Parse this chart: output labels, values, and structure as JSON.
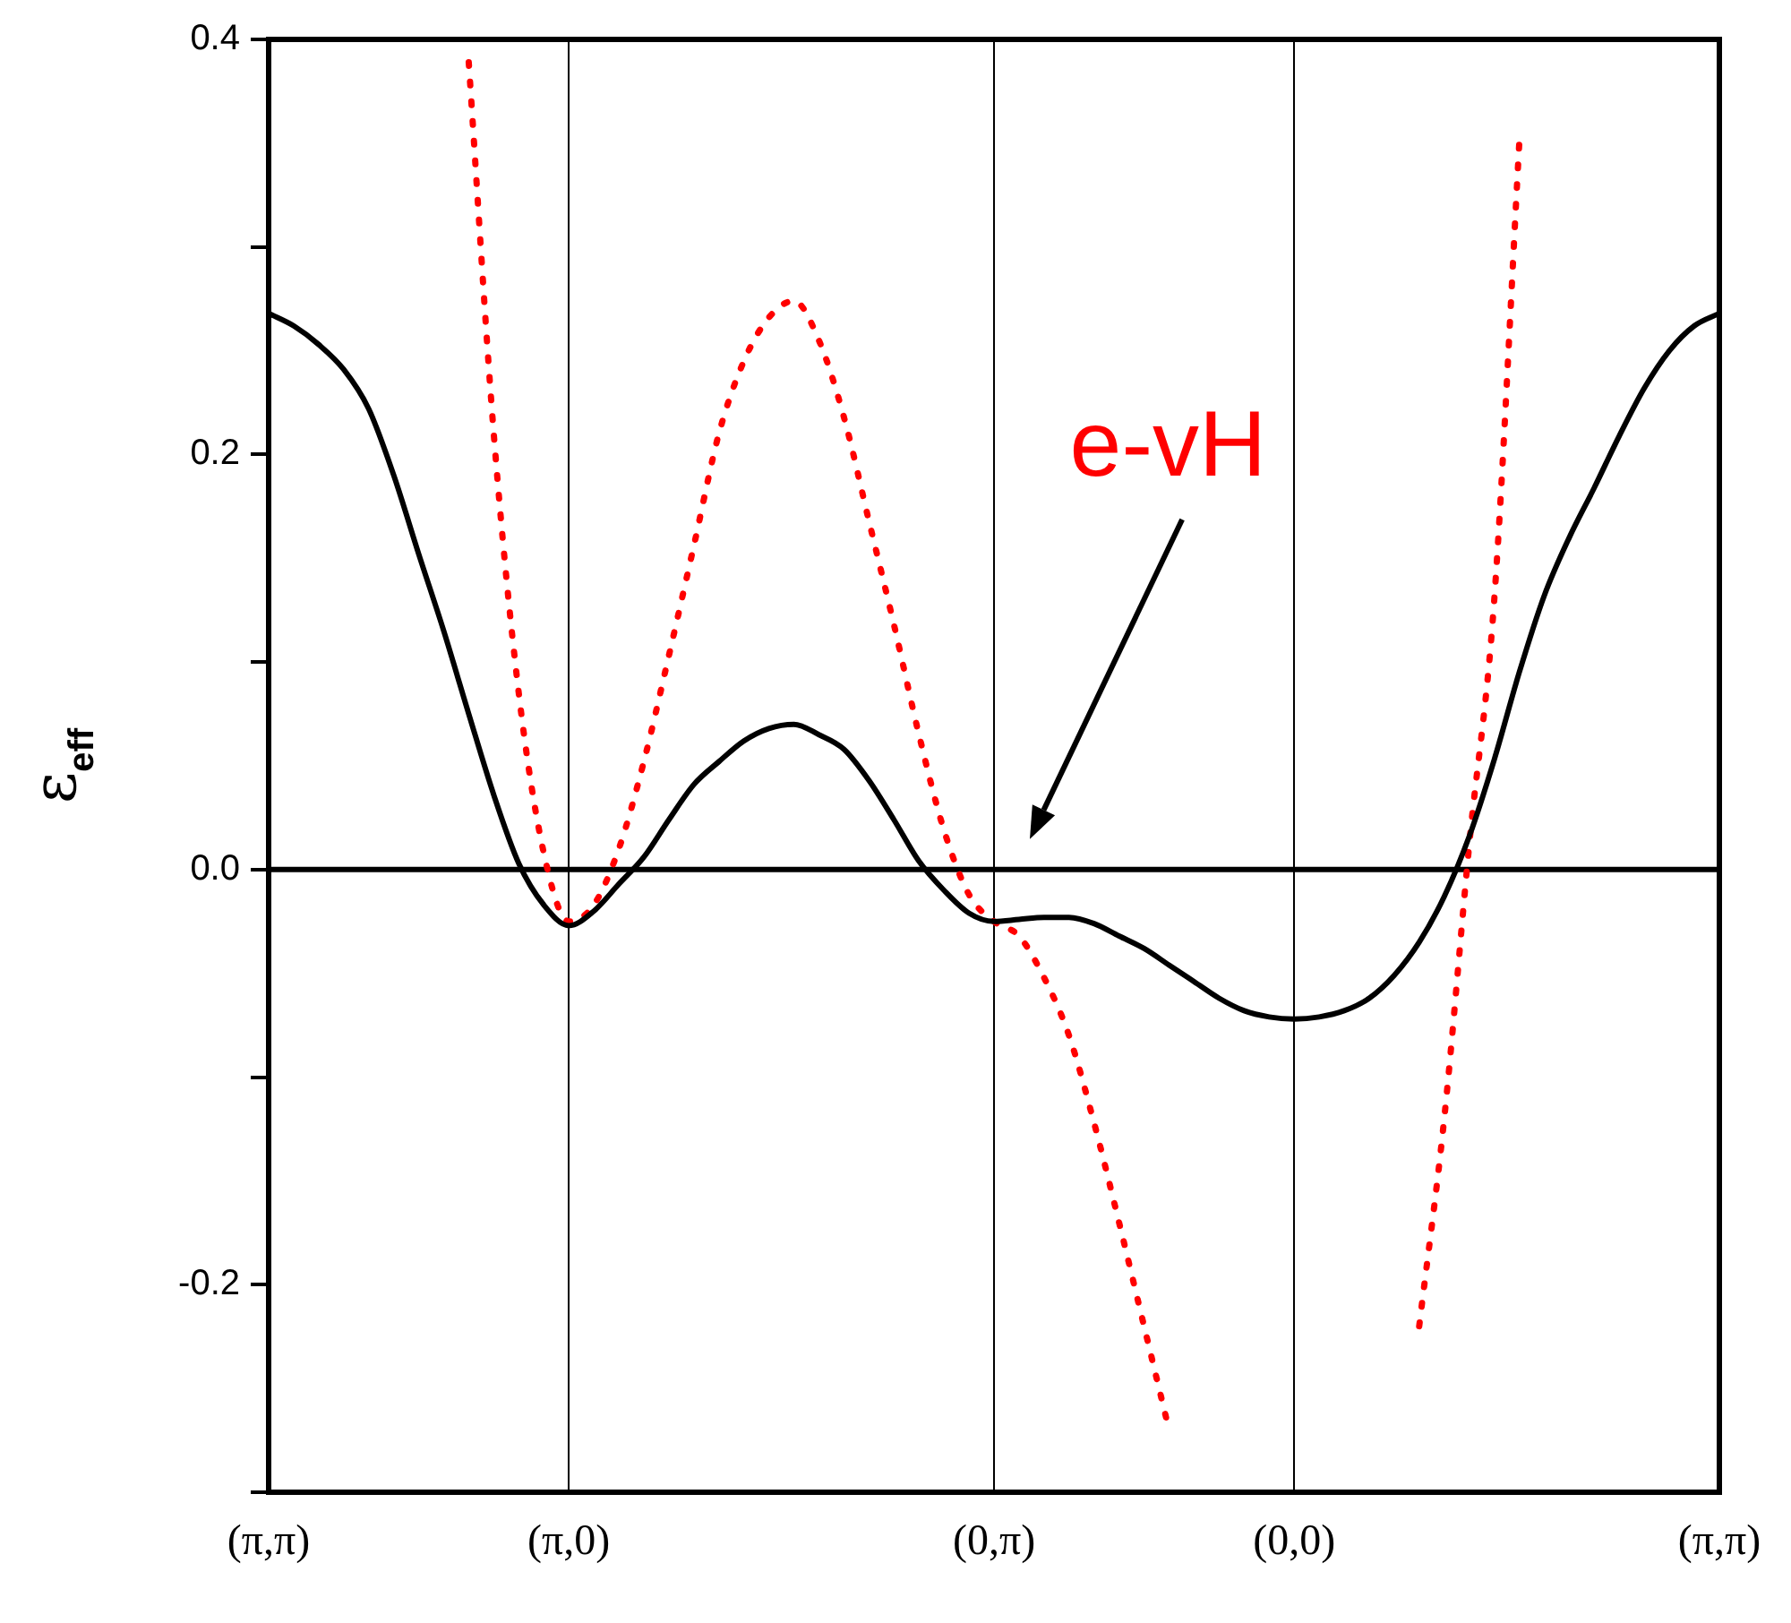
{
  "chart_data": {
    "type": "line",
    "ylabel": "ε$_{eff}$",
    "categories": [
      "(π,π)",
      null,
      null,
      null,
      null,
      null,
      null,
      null,
      null,
      null,
      null,
      null,
      "(π,0)",
      null,
      null,
      null,
      null,
      null,
      null,
      null,
      null,
      null,
      null,
      null,
      null,
      null,
      null,
      null,
      null,
      "(0,π)",
      null,
      null,
      null,
      null,
      null,
      null,
      null,
      null,
      null,
      null,
      null,
      "(0,0)",
      null,
      null,
      null,
      null,
      null,
      null,
      null,
      null,
      null,
      null,
      null,
      null,
      null,
      null,
      null,
      null,
      "(π,π)"
    ],
    "ylim": [
      -0.3,
      0.4
    ],
    "yticks": [
      {
        "value": -0.3,
        "label": null
      },
      {
        "value": -0.2,
        "label": "-0.2"
      },
      {
        "value": -0.1,
        "label": null
      },
      {
        "value": 0,
        "label": "0.0"
      },
      {
        "value": 0.1,
        "label": null
      },
      {
        "value": 0.2,
        "label": "0.2"
      },
      {
        "value": 0.3,
        "label": null
      },
      {
        "value": 0.4,
        "label": "0.4"
      }
    ],
    "grid": "x",
    "legend": false,
    "marker": "none",
    "ref_lines": [
      {
        "axis": "y",
        "value": 0,
        "color": "#000000"
      }
    ],
    "annotations": [
      "e-vH"
    ],
    "series": [
      {
        "color": "#000000",
        "line_style": "solid",
        "values": [
          0.268,
          0.262,
          0.253,
          0.241,
          0.222,
          0.19,
          0.152,
          0.115,
          0.075,
          0.036,
          0.003,
          -0.017,
          -0.027,
          -0.02,
          -0.007,
          0.006,
          0.024,
          0.041,
          0.052,
          0.062,
          0.068,
          0.07,
          0.065,
          0.058,
          0.043,
          0.024,
          0.004,
          -0.01,
          -0.021,
          -0.025,
          -0.024,
          -0.023,
          -0.023,
          -0.026,
          -0.032,
          -0.038,
          -0.046,
          -0.054,
          -0.062,
          -0.068,
          -0.071,
          -0.072,
          -0.071,
          -0.068,
          -0.062,
          -0.051,
          -0.035,
          -0.013,
          0.016,
          0.053,
          0.095,
          0.132,
          0.16,
          0.184,
          0.209,
          0.232,
          0.25,
          0.262,
          0.268
        ]
      },
      {
        "color": "#ff0000",
        "line_style": "dotted",
        "values": [
          null,
          null,
          null,
          null,
          null,
          null,
          null,
          null,
          0.389,
          0.21,
          0.085,
          0.008,
          -0.025,
          -0.017,
          0.01,
          0.052,
          0.103,
          0.156,
          0.21,
          0.245,
          0.266,
          0.274,
          0.255,
          0.218,
          0.168,
          0.118,
          0.065,
          0.019,
          -0.012,
          -0.025,
          -0.032,
          -0.052,
          -0.08,
          -0.122,
          -0.17,
          -0.22,
          -0.27,
          null,
          null,
          null,
          null,
          null,
          null,
          null,
          null,
          null,
          -0.22,
          -0.12,
          0.012,
          0.13,
          0.35,
          null,
          null,
          null,
          null,
          null,
          null,
          null,
          null
        ]
      }
    ]
  }
}
